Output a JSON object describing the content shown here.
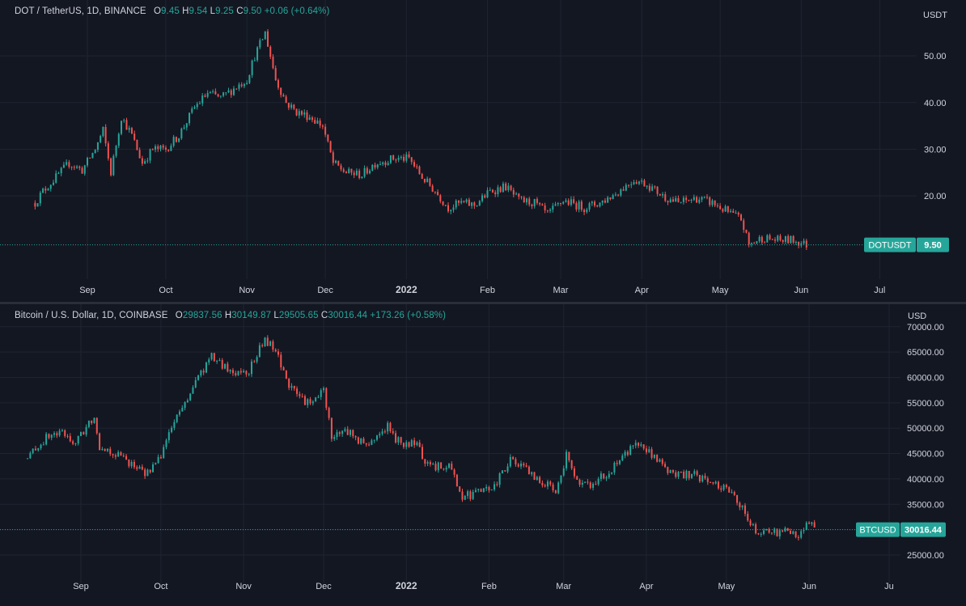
{
  "colors": {
    "up": "#26a69a",
    "down": "#ef5350",
    "background": "#131722",
    "grid": "#1f2430",
    "text": "#d1d4dc",
    "badge": "#26a69a"
  },
  "panels": [
    {
      "symbol": "DOT / TetherUS, 1D, BINANCE",
      "ohlc": {
        "o_label": "O",
        "o": "9.45",
        "h_label": "H",
        "h": "9.54",
        "l_label": "L",
        "l": "9.25",
        "c_label": "C",
        "c": "9.50",
        "change": "+0.06 (+0.64%)"
      },
      "currency": "USDT",
      "price_badge": {
        "ticker": "DOTUSDT",
        "price": "9.50"
      }
    },
    {
      "symbol": "Bitcoin / U.S. Dollar, 1D, COINBASE",
      "ohlc": {
        "o_label": "O",
        "o": "29837.56",
        "h_label": "H",
        "h": "30149.87",
        "l_label": "L",
        "l": "29505.65",
        "c_label": "C",
        "c": "30016.44",
        "change": "+173.26 (+0.58%)"
      },
      "currency": "USD",
      "price_badge": {
        "ticker": "BTCUSD",
        "price": "30016.44"
      }
    }
  ],
  "chart_data": [
    {
      "type": "candlestick",
      "title": "DOT / TetherUS, 1D, BINANCE",
      "ylabel": "USDT",
      "ylim": [
        2,
        58
      ],
      "y_ticks": [
        "20.00",
        "30.00",
        "40.00",
        "50.00"
      ],
      "x_ticks": [
        "Sep",
        "Oct",
        "Nov",
        "Dec",
        "2022",
        "Feb",
        "Mar",
        "Apr",
        "May",
        "Jun",
        "Jul"
      ],
      "series": [
        {
          "x": [
            "2021-08-12",
            "2021-08-15",
            "2021-08-20",
            "2021-08-25",
            "2021-08-30",
            "2021-09-04",
            "2021-09-07",
            "2021-09-10",
            "2021-09-14",
            "2021-09-18",
            "2021-09-22",
            "2021-09-26",
            "2021-10-01",
            "2021-10-06",
            "2021-10-12",
            "2021-10-17",
            "2021-10-22",
            "2021-10-27",
            "2021-11-01",
            "2021-11-04",
            "2021-11-08",
            "2021-11-12",
            "2021-11-16",
            "2021-11-20",
            "2021-11-25",
            "2021-11-30",
            "2021-12-04",
            "2021-12-09",
            "2021-12-15",
            "2021-12-20",
            "2021-12-27",
            "2022-01-02",
            "2022-01-07",
            "2022-01-12",
            "2022-01-17",
            "2022-01-22",
            "2022-01-27",
            "2022-02-02",
            "2022-02-08",
            "2022-02-13",
            "2022-02-19",
            "2022-02-24",
            "2022-03-02",
            "2022-03-10",
            "2022-03-16",
            "2022-03-22",
            "2022-03-29",
            "2022-04-03",
            "2022-04-09",
            "2022-04-15",
            "2022-04-22",
            "2022-04-28",
            "2022-05-04",
            "2022-05-09",
            "2022-05-12",
            "2022-05-17",
            "2022-05-23",
            "2022-05-29",
            "2022-06-03"
          ],
          "values": [
            18.5,
            21,
            24,
            27,
            25.5,
            30,
            34,
            25,
            37,
            33,
            27,
            30,
            30,
            33,
            39,
            42,
            41,
            43,
            45,
            50,
            55,
            45,
            40,
            38,
            37,
            35,
            27,
            25,
            24.5,
            27,
            28,
            28,
            24,
            21,
            17.5,
            18.5,
            18,
            21,
            22,
            19,
            18.5,
            16,
            19,
            17.5,
            18.5,
            20.5,
            23.5,
            22.5,
            20,
            18.5,
            19.5,
            18.5,
            16.5,
            15,
            9.5,
            11,
            10.5,
            10.5,
            9.5
          ]
        }
      ]
    },
    {
      "type": "candlestick",
      "title": "Bitcoin / U.S. Dollar, 1D, COINBASE",
      "ylabel": "USD",
      "ylim": [
        22000,
        71500
      ],
      "y_ticks": [
        "25000.00",
        "30000.00",
        "35000.00",
        "40000.00",
        "45000.00",
        "50000.00",
        "55000.00",
        "60000.00",
        "65000.00",
        "70000.00"
      ],
      "x_ticks": [
        "Sep",
        "Oct",
        "Nov",
        "Dec",
        "2022",
        "Feb",
        "Mar",
        "Apr",
        "May",
        "Jun",
        "Ju"
      ],
      "series": [
        {
          "x": [
            "2021-08-12",
            "2021-08-15",
            "2021-08-20",
            "2021-08-25",
            "2021-08-30",
            "2021-09-06",
            "2021-09-08",
            "2021-09-14",
            "2021-09-20",
            "2021-09-25",
            "2021-09-30",
            "2021-10-04",
            "2021-10-10",
            "2021-10-15",
            "2021-10-20",
            "2021-10-27",
            "2021-11-03",
            "2021-11-09",
            "2021-11-13",
            "2021-11-19",
            "2021-11-26",
            "2021-12-01",
            "2021-12-04",
            "2021-12-10",
            "2021-12-17",
            "2021-12-25",
            "2021-12-28",
            "2022-01-05",
            "2022-01-10",
            "2022-01-17",
            "2022-01-22",
            "2022-01-27",
            "2022-02-03",
            "2022-02-09",
            "2022-02-14",
            "2022-02-20",
            "2022-02-26",
            "2022-03-02",
            "2022-03-07",
            "2022-03-12",
            "2022-03-18",
            "2022-03-24",
            "2022-03-28",
            "2022-04-02",
            "2022-04-08",
            "2022-04-12",
            "2022-04-18",
            "2022-04-25",
            "2022-04-30",
            "2022-05-05",
            "2022-05-10",
            "2022-05-13",
            "2022-05-18",
            "2022-05-24",
            "2022-05-28",
            "2022-06-01",
            "2022-06-03"
          ],
          "values": [
            44000,
            46000,
            48500,
            49000,
            47000,
            52500,
            46500,
            45000,
            43000,
            41000,
            43500,
            49000,
            55000,
            60000,
            64000,
            61000,
            61500,
            67500,
            65000,
            57500,
            54500,
            57500,
            48500,
            49500,
            46500,
            50500,
            47500,
            46500,
            42000,
            43000,
            36500,
            37000,
            38500,
            44000,
            42000,
            39500,
            38000,
            44500,
            38500,
            39000,
            41500,
            44500,
            47500,
            45500,
            42000,
            40500,
            41000,
            39500,
            38500,
            36000,
            31000,
            29500,
            29500,
            29500,
            29000,
            31500,
            30000
          ]
        }
      ]
    }
  ]
}
